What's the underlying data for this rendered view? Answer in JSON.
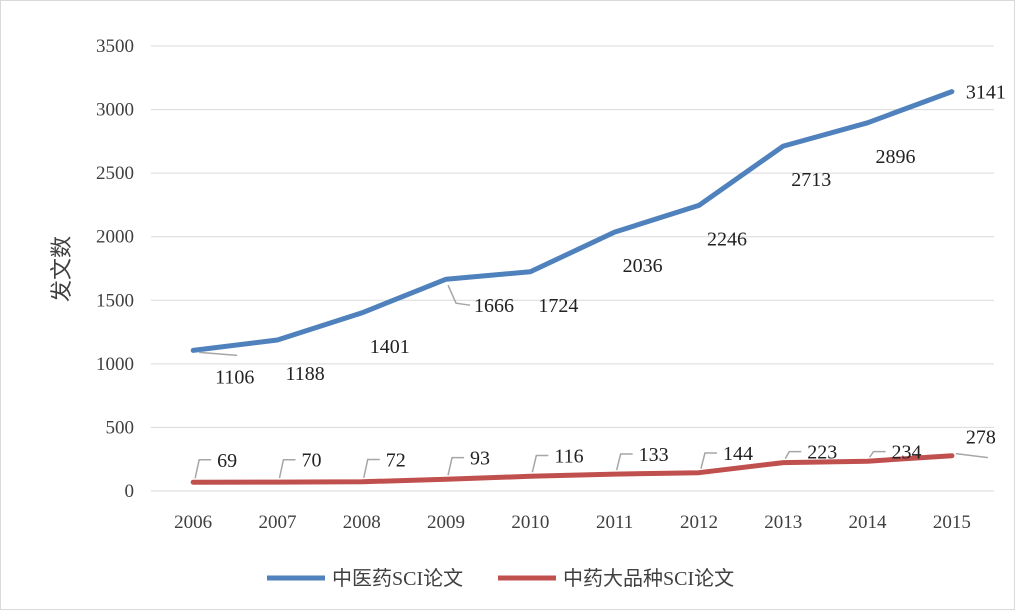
{
  "chart_data": {
    "type": "line",
    "title": "",
    "xlabel": "",
    "ylabel": "发文数",
    "categories": [
      "2006",
      "2007",
      "2008",
      "2009",
      "2010",
      "2011",
      "2012",
      "2013",
      "2014",
      "2015"
    ],
    "ylim": [
      0,
      3500
    ],
    "yticks": [
      0,
      500,
      1000,
      1500,
      2000,
      2500,
      3000,
      3500
    ],
    "grid": true,
    "legend_position": "bottom",
    "series": [
      {
        "name": "中医药SCI论文",
        "color": "#4f81bd",
        "values": [
          1106,
          1188,
          1401,
          1666,
          1724,
          2036,
          2246,
          2713,
          2896,
          3141
        ]
      },
      {
        "name": "中药大品种SCI论文",
        "color": "#c0504d",
        "values": [
          69,
          70,
          72,
          93,
          116,
          133,
          144,
          223,
          234,
          278
        ]
      }
    ]
  }
}
